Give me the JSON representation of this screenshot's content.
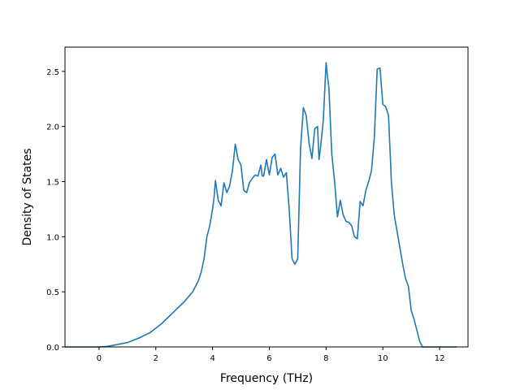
{
  "chart_data": {
    "type": "line",
    "title": "",
    "xlabel": "Frequency (THz)",
    "ylabel": "Density of States",
    "xlim": [
      -1.2,
      13.0
    ],
    "ylim": [
      0.0,
      2.72
    ],
    "xticks": [
      0,
      2,
      4,
      6,
      8,
      10,
      12
    ],
    "xtick_labels": [
      "0",
      "2",
      "4",
      "6",
      "8",
      "10",
      "12"
    ],
    "yticks": [
      0.0,
      0.5,
      1.0,
      1.5,
      2.0,
      2.5
    ],
    "ytick_labels": [
      "0.0",
      "0.5",
      "1.0",
      "1.5",
      "2.0",
      "2.5"
    ],
    "grid": false,
    "line_color": "#1f77b4",
    "series": [
      {
        "x": [
          -1.2,
          -0.5,
          0.0,
          0.3,
          0.6,
          1.0,
          1.4,
          1.8,
          2.2,
          2.6,
          3.0,
          3.3,
          3.5,
          3.6,
          3.7,
          3.8,
          3.9,
          4.0,
          4.05,
          4.1,
          4.2,
          4.3,
          4.4,
          4.5,
          4.6,
          4.7,
          4.8,
          4.9,
          5.0,
          5.1,
          5.2,
          5.3,
          5.4,
          5.5,
          5.6,
          5.7,
          5.75,
          5.8,
          5.9,
          6.0,
          6.1,
          6.2,
          6.3,
          6.4,
          6.5,
          6.6,
          6.7,
          6.8,
          6.9,
          7.0,
          7.1,
          7.2,
          7.3,
          7.4,
          7.5,
          7.6,
          7.7,
          7.75,
          7.8,
          7.9,
          8.0,
          8.05,
          8.1,
          8.2,
          8.3,
          8.4,
          8.5,
          8.6,
          8.7,
          8.8,
          8.9,
          9.0,
          9.1,
          9.2,
          9.3,
          9.4,
          9.5,
          9.6,
          9.7,
          9.8,
          9.9,
          10.0,
          10.1,
          10.2,
          10.3,
          10.4,
          10.5,
          10.6,
          10.7,
          10.8,
          10.9,
          11.0,
          11.1,
          11.2,
          11.3,
          11.4,
          11.5,
          11.6,
          12.0,
          12.6
        ],
        "y": [
          0.0,
          0.0,
          0.0,
          0.005,
          0.02,
          0.04,
          0.08,
          0.13,
          0.21,
          0.31,
          0.41,
          0.5,
          0.6,
          0.68,
          0.8,
          1.0,
          1.1,
          1.25,
          1.35,
          1.51,
          1.33,
          1.28,
          1.49,
          1.4,
          1.46,
          1.6,
          1.84,
          1.7,
          1.65,
          1.42,
          1.4,
          1.49,
          1.53,
          1.56,
          1.55,
          1.65,
          1.55,
          1.55,
          1.7,
          1.56,
          1.72,
          1.75,
          1.56,
          1.62,
          1.54,
          1.58,
          1.25,
          0.8,
          0.75,
          0.8,
          1.8,
          2.17,
          2.1,
          1.85,
          1.71,
          1.98,
          2.0,
          1.7,
          1.8,
          2.05,
          2.58,
          2.45,
          2.35,
          1.75,
          1.5,
          1.18,
          1.33,
          1.2,
          1.14,
          1.13,
          1.1,
          1.0,
          0.98,
          1.32,
          1.28,
          1.42,
          1.5,
          1.6,
          1.9,
          2.52,
          2.53,
          2.2,
          2.18,
          2.1,
          1.5,
          1.2,
          1.05,
          0.9,
          0.75,
          0.62,
          0.55,
          0.33,
          0.25,
          0.15,
          0.05,
          0.0,
          0.0,
          0.0,
          0.0,
          0.0
        ]
      }
    ]
  }
}
